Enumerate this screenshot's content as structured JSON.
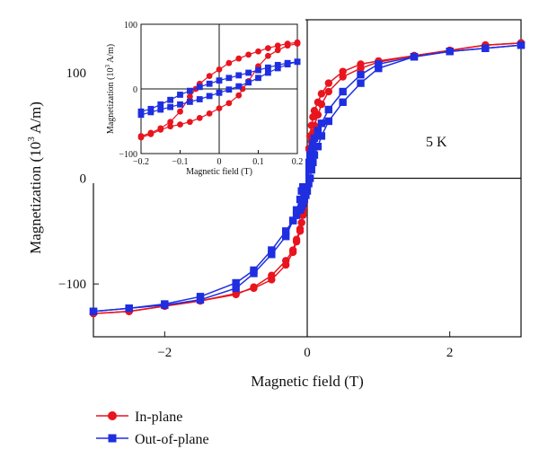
{
  "chart_data": [
    {
      "type": "line",
      "xlabel": "Magnetic field (T)",
      "ylabel": "Magnetization (10^3 A/m)",
      "ylabel_base": "Magnetization (10",
      "ylabel_sup": "3",
      "ylabel_end": " A/m)",
      "annotation": "5 K",
      "xlim": [
        -3,
        3
      ],
      "ylim": [
        -150,
        150
      ],
      "xticks": [
        -2,
        0,
        2
      ],
      "xtick_labels": [
        "−2",
        "0",
        "2"
      ],
      "yticks": [
        -100,
        0,
        100
      ],
      "ytick_labels": [
        "−100",
        "0",
        "100"
      ],
      "grid": false,
      "zero_lines": true,
      "legend": {
        "placement": "bottom-left, below plot"
      },
      "series": [
        {
          "name": "In-plane",
          "color": "#e8141e",
          "marker": "circle",
          "branches": [
            {
              "x": [
                -3,
                -2.5,
                -2,
                -1.5,
                -1,
                -0.75,
                -0.5,
                -0.3,
                -0.2,
                -0.15,
                -0.1,
                -0.08,
                -0.06,
                -0.04,
                -0.02,
                0,
                0.02,
                0.04,
                0.05,
                0.06,
                0.08,
                0.1,
                0.15,
                0.2,
                0.3,
                0.5,
                0.75,
                1,
                1.5,
                2,
                2.5,
                3
              ],
              "y": [
                -128,
                -126,
                -121,
                -116,
                -109,
                -104,
                -96,
                -82,
                -70,
                -60,
                -50,
                -42,
                -32,
                -22,
                -10,
                0,
                10,
                22,
                28,
                35,
                43,
                50,
                60,
                70,
                82,
                96,
                104,
                110,
                116,
                121,
                126,
                128
              ]
            },
            {
              "x": [
                3,
                2.5,
                2,
                1.5,
                1,
                0.75,
                0.5,
                0.3,
                0.2,
                0.15,
                0.1,
                0.08,
                0.06,
                0.04,
                0.02,
                0,
                -0.02,
                -0.04,
                -0.05,
                -0.06,
                -0.08,
                -0.1,
                -0.15,
                -0.2,
                -0.3,
                -0.5,
                -0.75,
                -1,
                -1.5,
                -2,
                -2.5,
                -3
              ],
              "y": [
                128,
                126,
                121,
                116,
                111,
                108,
                101,
                90,
                80,
                72,
                64,
                58,
                50,
                40,
                28,
                15,
                -2,
                -18,
                -28,
                -35,
                -42,
                -48,
                -58,
                -68,
                -78,
                -92,
                -103,
                -110,
                -116,
                -121,
                -126,
                -128
              ]
            }
          ]
        },
        {
          "name": "Out-of-plane",
          "color": "#1e2ee0",
          "marker": "square",
          "branches": [
            {
              "x": [
                -3,
                -2.5,
                -2,
                -1.5,
                -1,
                -0.75,
                -0.5,
                -0.3,
                -0.2,
                -0.15,
                -0.1,
                -0.08,
                -0.06,
                -0.04,
                -0.02,
                0,
                0.02,
                0.04,
                0.06,
                0.08,
                0.1,
                0.15,
                0.2,
                0.3,
                0.5,
                0.75,
                1,
                1.5,
                2,
                2.5,
                3
              ],
              "y": [
                -126,
                -123,
                -119,
                -112,
                -99,
                -87,
                -68,
                -50,
                -40,
                -35,
                -30,
                -27,
                -24,
                -20,
                -16,
                -12,
                -5,
                0,
                8,
                15,
                22,
                30,
                40,
                54,
                72,
                90,
                104,
                115,
                120,
                123,
                126
              ]
            },
            {
              "x": [
                3,
                2.5,
                2,
                1.5,
                1,
                0.75,
                0.5,
                0.3,
                0.2,
                0.15,
                0.1,
                0.08,
                0.06,
                0.04,
                0.02,
                0,
                -0.02,
                -0.04,
                -0.06,
                -0.08,
                -0.1,
                -0.15,
                -0.2,
                -0.3,
                -0.5,
                -0.75,
                -1,
                -1.5,
                -2,
                -2.5,
                -3
              ],
              "y": [
                126,
                123,
                120,
                115,
                108,
                98,
                82,
                65,
                52,
                45,
                38,
                33,
                27,
                22,
                15,
                10,
                5,
                0,
                -6,
                -12,
                -20,
                -30,
                -40,
                -55,
                -72,
                -90,
                -104,
                -115,
                -120,
                -123,
                -126
              ]
            }
          ]
        }
      ]
    },
    {
      "type": "line",
      "role": "inset",
      "xlabel": "Magnetic field (T)",
      "ylabel": "Magnetization (10^3 A/m)",
      "ylabel_base": "Magnetization (10",
      "ylabel_sup": "3",
      "ylabel_end": " A/m)",
      "xlim": [
        -0.2,
        0.2
      ],
      "ylim": [
        -100,
        100
      ],
      "xticks": [
        -0.2,
        -0.1,
        0,
        0.1,
        0.2
      ],
      "xtick_labels": [
        "−0.2",
        "−0.1",
        "0",
        "0.1",
        "0.2"
      ],
      "yticks": [
        -100,
        0,
        100
      ],
      "ytick_labels": [
        "−100",
        "0",
        "100"
      ],
      "zero_lines": true,
      "series": [
        {
          "name": "In-plane",
          "color": "#e8141e",
          "marker": "circle",
          "branches": [
            {
              "x": [
                -0.2,
                -0.175,
                -0.15,
                -0.125,
                -0.1,
                -0.075,
                -0.05,
                -0.025,
                0,
                0.025,
                0.05,
                0.06,
                0.075,
                0.1,
                0.125,
                0.15,
                0.175,
                0.2
              ],
              "y": [
                -75,
                -70,
                -63,
                -58,
                -55,
                -51,
                -45,
                -38,
                -30,
                -22,
                -10,
                0,
                12,
                35,
                51,
                60,
                67,
                70
              ]
            },
            {
              "x": [
                0.2,
                0.175,
                0.15,
                0.125,
                0.1,
                0.075,
                0.05,
                0.025,
                0,
                -0.025,
                -0.05,
                -0.06,
                -0.075,
                -0.1,
                -0.125,
                -0.15,
                -0.175,
                -0.2
              ],
              "y": [
                72,
                70,
                67,
                63,
                58,
                53,
                47,
                40,
                30,
                20,
                8,
                0,
                -12,
                -35,
                -51,
                -61,
                -68,
                -73
              ]
            }
          ]
        },
        {
          "name": "Out-of-plane",
          "color": "#1e2ee0",
          "marker": "square",
          "branches": [
            {
              "x": [
                -0.2,
                -0.175,
                -0.15,
                -0.125,
                -0.1,
                -0.075,
                -0.05,
                -0.025,
                0,
                0.025,
                0.05,
                0.075,
                0.1,
                0.125,
                0.15,
                0.175,
                0.2
              ],
              "y": [
                -40,
                -36,
                -32,
                -28,
                -24,
                -20,
                -16,
                -11,
                -6,
                -1,
                4,
                10,
                17,
                25,
                32,
                38,
                42
              ]
            },
            {
              "x": [
                0.2,
                0.175,
                0.15,
                0.125,
                0.1,
                0.075,
                0.05,
                0.025,
                0,
                -0.025,
                -0.05,
                -0.075,
                -0.1,
                -0.125,
                -0.15,
                -0.175,
                -0.2
              ],
              "y": [
                42,
                40,
                37,
                33,
                29,
                25,
                21,
                17,
                13,
                8,
                3,
                -3,
                -9,
                -17,
                -24,
                -31,
                -35
              ]
            }
          ]
        }
      ]
    }
  ]
}
